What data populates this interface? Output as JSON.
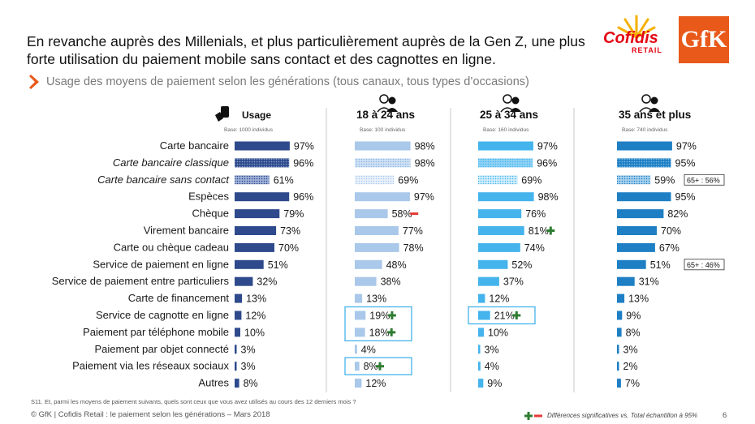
{
  "title": "En revanche auprès des Millenials, et plus particulièrement auprès de la Gen Z, une plus forte utilisation du paiement mobile sans contact et des cagnottes en ligne.",
  "subtitle": "Usage des moyens de paiement selon les générations (tous canaux, tous types d’occasions)",
  "logos": {
    "cofidis": "Cofidis",
    "retail": "RETAIL",
    "gfk": "GfK"
  },
  "footer_note": "S11. Et, parmi les moyens de paiement suivants, quels sont ceux que vous avez utilisés au cours des 12 derniers mois ?",
  "footer": "© GfK  | Cofidis Retail : le paiement selon les générations – Mars 2018",
  "legend": "Différences significatives vs. Total échantillon à 95%",
  "page_number": "6",
  "colors": {
    "total": "#2e4a8c",
    "g18": "#a9c8ea",
    "g25": "#45b4ec",
    "g35": "#1e7fc4",
    "plus": "#2e7d32",
    "minus": "#e53935",
    "highlight": "#45b4ec"
  },
  "chart_data": {
    "type": "bar",
    "orientation": "horizontal",
    "xlim": [
      0,
      100
    ],
    "categories": [
      "Carte  bancaire",
      "Carte bancaire classique",
      "Carte bancaire sans contact",
      "Espèces",
      "Chèque",
      "Virement bancaire",
      "Carte ou chèque cadeau",
      "Service de paiement en ligne",
      "Service de paiement entre particuliers",
      "Carte de financement",
      "Service de cagnotte en ligne",
      "Paiement par téléphone mobile",
      "Paiement par objet connecté",
      "Paiement via les réseaux sociaux",
      "Autres"
    ],
    "italic_categories": [
      1,
      2
    ],
    "series": [
      {
        "name": "Usage",
        "base": "Base: 1000 individus",
        "values": [
          97,
          96,
          61,
          96,
          79,
          73,
          70,
          51,
          32,
          13,
          12,
          10,
          3,
          3,
          8
        ],
        "sig": {}
      },
      {
        "name": "18 à 24 ans",
        "base": "Base: 100 individus",
        "values": [
          98,
          98,
          69,
          97,
          58,
          77,
          78,
          48,
          38,
          13,
          19,
          18,
          4,
          8,
          12
        ],
        "sig": {
          "4": "minus",
          "10": "plus",
          "11": "plus",
          "13": "plus"
        },
        "highlight": [
          10,
          11,
          13
        ]
      },
      {
        "name": "25 à 34 ans",
        "base": "Base: 160 individus",
        "values": [
          97,
          96,
          69,
          98,
          76,
          81,
          74,
          52,
          37,
          12,
          21,
          10,
          3,
          4,
          9
        ],
        "sig": {
          "5": "plus",
          "10": "plus"
        },
        "highlight": [
          10
        ]
      },
      {
        "name": "35 ans et plus",
        "base": "Base: 740 individus",
        "values": [
          97,
          95,
          59,
          95,
          82,
          70,
          67,
          51,
          31,
          13,
          9,
          8,
          3,
          2,
          7
        ],
        "sig": {},
        "notes": {
          "2": "65+ : 56%",
          "7": "65+ : 46%"
        }
      }
    ]
  }
}
